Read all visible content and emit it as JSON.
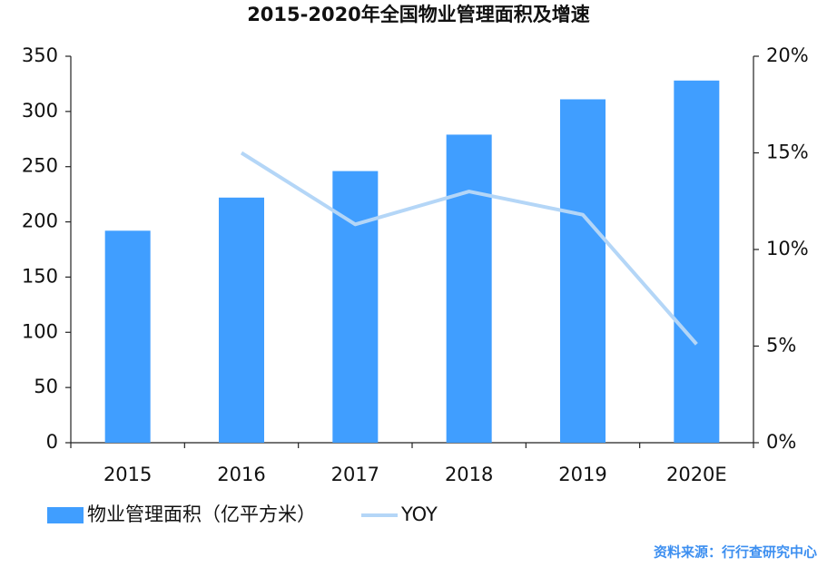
{
  "chart_data": {
    "type": "bar_line",
    "title": "2015-2020年全国物业管理面积及增速",
    "categories": [
      "2015",
      "2016",
      "2017",
      "2018",
      "2019",
      "2020E"
    ],
    "series": [
      {
        "name": "物业管理面积（亿平方米）",
        "type": "bar",
        "color": "#409eff",
        "values": [
          192,
          222,
          246,
          279,
          311,
          328
        ]
      },
      {
        "name": "YOY",
        "type": "line",
        "axis": "y2",
        "color": "#b4d6f7",
        "values": [
          null,
          15.0,
          11.3,
          13.0,
          11.8,
          5.1
        ]
      }
    ],
    "ylim": [
      0,
      350
    ],
    "yticks": [
      0,
      50,
      100,
      150,
      200,
      250,
      300,
      350
    ],
    "y2lim": [
      0,
      20
    ],
    "y2ticks": [
      {
        "value": 0,
        "label": "0%"
      },
      {
        "value": 5,
        "label": "5%"
      },
      {
        "value": 10,
        "label": "10%"
      },
      {
        "value": 15,
        "label": "15%"
      },
      {
        "value": 20,
        "label": "20%"
      }
    ],
    "grid": false,
    "legend": "bottom",
    "source": "资料来源：行行查研究中心"
  }
}
